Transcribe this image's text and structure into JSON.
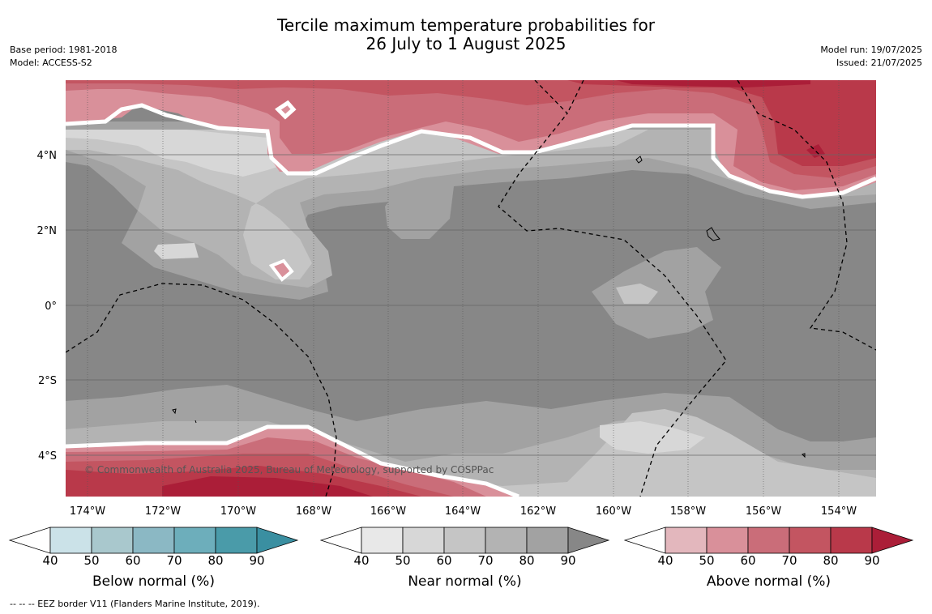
{
  "title": {
    "line1": "Tercile maximum temperature probabilities for",
    "line2": "26 July to 1 August 2025"
  },
  "meta_left": {
    "base_period": "Base period: 1981-2018",
    "model": "Model: ACCESS-S2"
  },
  "meta_right": {
    "model_run": "Model run: 19/07/2025",
    "issued": "Issued: 21/07/2025"
  },
  "map": {
    "region": "Kiribati / Phoenix Islands, equatorial Pacific",
    "longitude_labels": [
      "174°W",
      "172°W",
      "170°W",
      "168°W",
      "166°W",
      "164°W",
      "162°W",
      "160°W",
      "158°W",
      "156°W",
      "154°W"
    ],
    "latitude_labels": [
      "4°N",
      "2°N",
      "0°",
      "2°S",
      "4°S"
    ],
    "copyright": "© Commonwealth of Australia 2025, Bureau of Meteorology, supported by COSPPac",
    "colors": {
      "near_50": "#d7d7d7",
      "near_60": "#c5c5c5",
      "near_70": "#b3b3b3",
      "near_80": "#a2a2a2",
      "near_90": "#878787",
      "above_50": "#d9909a",
      "above_60": "#ca6d79",
      "above_70": "#c35561",
      "above_80": "#b9394a",
      "above_90": "#ab1e38"
    }
  },
  "colorbars": [
    {
      "title": "Below normal (%)",
      "ticks": [
        "40",
        "50",
        "60",
        "70",
        "80",
        "90"
      ],
      "colors": [
        "#cbe2e8",
        "#a9c8cd",
        "#8bb8c4",
        "#6daebb",
        "#4a9ba9",
        "#3a8fa1"
      ]
    },
    {
      "title": "Near normal (%)",
      "ticks": [
        "40",
        "50",
        "60",
        "70",
        "80",
        "90"
      ],
      "colors": [
        "#e8e8e8",
        "#d7d7d7",
        "#c5c5c5",
        "#b3b3b3",
        "#a2a2a2",
        "#878787"
      ]
    },
    {
      "title": "Above normal (%)",
      "ticks": [
        "40",
        "50",
        "60",
        "70",
        "80",
        "90"
      ],
      "colors": [
        "#e3b7bd",
        "#d9909a",
        "#ca6d79",
        "#c35561",
        "#b9394a",
        "#ab1e38"
      ]
    }
  ],
  "footer": "-- -- -- EEZ border V11 (Flanders Marine Institute, 2019)."
}
